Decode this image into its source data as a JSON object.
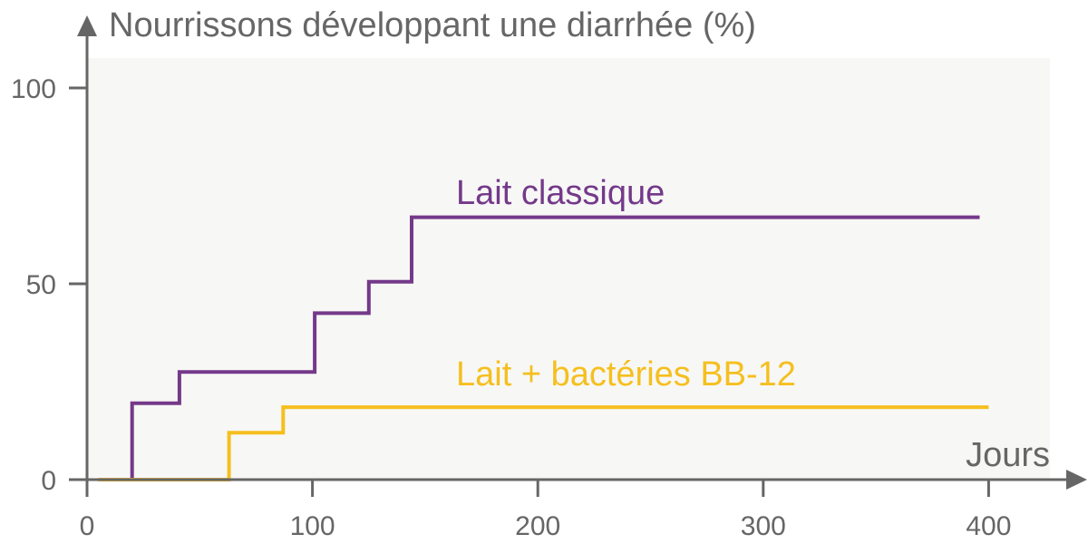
{
  "chart_data": {
    "type": "line",
    "step": true,
    "ylabel": "Nourrissons développant une diarrhée (%)",
    "xlabel": "Jours",
    "xlim": [
      0,
      430
    ],
    "ylim": [
      0,
      100
    ],
    "x_ticks": [
      0,
      100,
      200,
      300,
      400
    ],
    "y_ticks": [
      0,
      50,
      100
    ],
    "grid": false,
    "colors": {
      "axis": "#666666",
      "plot_background": "#f7f7f5"
    },
    "series": [
      {
        "name": "Lait classique",
        "color": "#74398a",
        "points": [
          [
            5,
            0
          ],
          [
            20,
            19.5
          ],
          [
            41,
            27.5
          ],
          [
            101,
            42.5
          ],
          [
            125,
            50.5
          ],
          [
            144,
            67
          ],
          [
            396,
            67
          ]
        ]
      },
      {
        "name": "Lait + bactéries BB-12",
        "color": "#f5bf1e",
        "points": [
          [
            5,
            0
          ],
          [
            63,
            12
          ],
          [
            87,
            18.5
          ],
          [
            400,
            18.5
          ]
        ]
      }
    ]
  }
}
